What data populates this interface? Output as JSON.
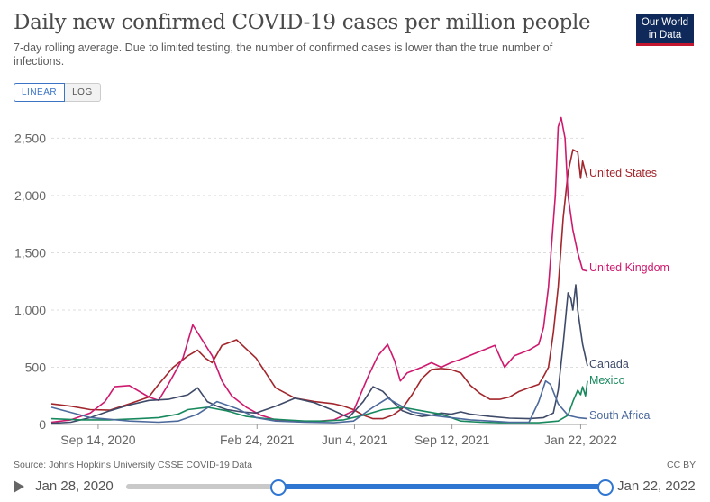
{
  "header": {
    "title": "Daily new confirmed COVID-19 cases per million people",
    "subtitle": "7-day rolling average. Due to limited testing, the number of confirmed cases is lower than the true number of infections.",
    "logo_line1": "Our World",
    "logo_line2": "in Data"
  },
  "scale_toggle": {
    "linear_label": "LINEAR",
    "log_label": "LOG",
    "selected": "LINEAR"
  },
  "footer": {
    "source": "Source: Johns Hopkins University CSSE COVID-19 Data",
    "license": "CC BY"
  },
  "timeline": {
    "start_label": "Jan 28, 2020",
    "end_label": "Jan 22, 2022"
  },
  "chart_data": {
    "type": "line",
    "title": "Daily new confirmed COVID-19 cases per million people",
    "xlabel": "",
    "ylabel": "",
    "x_unit": "days since Jul 28, 2020",
    "xlim": [
      0,
      550
    ],
    "ylim": [
      0,
      2700
    ],
    "yticks": [
      0,
      500,
      1000,
      1500,
      2000,
      2500
    ],
    "ytick_labels": [
      "0",
      "500",
      "1,000",
      "1,500",
      "2,000",
      "2,500"
    ],
    "xticks": [
      {
        "x": 48,
        "label": "Sep 14, 2020"
      },
      {
        "x": 211,
        "label": "Feb 24, 2021"
      },
      {
        "x": 311,
        "label": "Jun 4, 2021"
      },
      {
        "x": 411,
        "label": "Sep 12, 2021"
      },
      {
        "x": 543,
        "label": "Jan 22, 2022"
      }
    ],
    "grid": true,
    "series": [
      {
        "name": "United States",
        "color": "#a2262c",
        "x": [
          0,
          20,
          40,
          60,
          80,
          100,
          110,
          125,
          140,
          150,
          158,
          165,
          175,
          190,
          210,
          230,
          250,
          270,
          290,
          300,
          310,
          320,
          330,
          340,
          350,
          360,
          370,
          380,
          390,
          400,
          410,
          420,
          430,
          440,
          450,
          460,
          470,
          480,
          490,
          500,
          505,
          510,
          515,
          520,
          525,
          530,
          535,
          540,
          543,
          545,
          548,
          550
        ],
        "y": [
          180,
          160,
          130,
          125,
          180,
          240,
          350,
          500,
          600,
          650,
          580,
          540,
          690,
          740,
          580,
          320,
          230,
          200,
          180,
          160,
          130,
          80,
          50,
          50,
          80,
          140,
          260,
          400,
          480,
          490,
          480,
          450,
          340,
          270,
          220,
          220,
          240,
          290,
          320,
          350,
          420,
          500,
          800,
          1200,
          1800,
          2200,
          2400,
          2380,
          2150,
          2300,
          2200,
          2150
        ]
      },
      {
        "name": "United Kingdom",
        "color": "#ce1a6e",
        "x": [
          0,
          20,
          40,
          55,
          65,
          80,
          100,
          110,
          120,
          135,
          145,
          165,
          175,
          185,
          200,
          215,
          230,
          250,
          270,
          290,
          310,
          325,
          335,
          345,
          352,
          358,
          365,
          380,
          390,
          400,
          410,
          420,
          440,
          455,
          465,
          475,
          490,
          500,
          505,
          510,
          513,
          517,
          520,
          523,
          527,
          530,
          535,
          540,
          545,
          550
        ],
        "y": [
          20,
          40,
          100,
          200,
          330,
          340,
          240,
          210,
          350,
          580,
          870,
          600,
          380,
          250,
          150,
          80,
          40,
          30,
          25,
          40,
          120,
          420,
          600,
          700,
          560,
          380,
          450,
          500,
          540,
          500,
          540,
          570,
          640,
          690,
          500,
          600,
          650,
          700,
          850,
          1200,
          1550,
          2000,
          2600,
          2680,
          2500,
          2000,
          1700,
          1500,
          1350,
          1340
        ]
      },
      {
        "name": "Canada",
        "color": "#3e4a68",
        "x": [
          0,
          20,
          40,
          60,
          80,
          100,
          120,
          140,
          150,
          160,
          170,
          180,
          195,
          210,
          230,
          250,
          270,
          290,
          305,
          320,
          330,
          340,
          350,
          360,
          370,
          380,
          390,
          400,
          410,
          420,
          430,
          450,
          470,
          490,
          505,
          515,
          520,
          525,
          530,
          533,
          535,
          538,
          540,
          545,
          550
        ],
        "y": [
          10,
          20,
          60,
          120,
          170,
          210,
          220,
          260,
          320,
          200,
          160,
          130,
          110,
          100,
          160,
          230,
          190,
          120,
          60,
          200,
          330,
          290,
          200,
          120,
          90,
          70,
          80,
          100,
          90,
          110,
          90,
          70,
          55,
          50,
          60,
          100,
          300,
          700,
          1150,
          1100,
          1000,
          1220,
          1000,
          700,
          510
        ]
      },
      {
        "name": "Mexico",
        "color": "#18895e",
        "x": [
          0,
          30,
          60,
          90,
          110,
          130,
          140,
          160,
          180,
          200,
          220,
          240,
          260,
          280,
          300,
          320,
          340,
          360,
          380,
          400,
          410,
          420,
          440,
          460,
          480,
          500,
          520,
          530,
          535,
          540,
          543,
          545,
          548,
          550
        ],
        "y": [
          50,
          40,
          40,
          50,
          60,
          90,
          130,
          150,
          120,
          70,
          50,
          40,
          30,
          30,
          40,
          80,
          130,
          150,
          120,
          90,
          60,
          30,
          20,
          15,
          15,
          15,
          30,
          80,
          200,
          300,
          260,
          330,
          250,
          380
        ]
      },
      {
        "name": "South Africa",
        "color": "#4c6a9c",
        "x": [
          0,
          40,
          80,
          110,
          130,
          150,
          170,
          190,
          210,
          230,
          260,
          290,
          310,
          330,
          345,
          355,
          370,
          390,
          410,
          430,
          450,
          470,
          490,
          500,
          507,
          512,
          520,
          530,
          540,
          550
        ],
        "y": [
          150,
          60,
          30,
          20,
          30,
          90,
          200,
          140,
          60,
          30,
          20,
          15,
          30,
          150,
          230,
          180,
          110,
          80,
          60,
          40,
          30,
          20,
          20,
          200,
          380,
          350,
          180,
          80,
          60,
          50
        ]
      }
    ]
  }
}
